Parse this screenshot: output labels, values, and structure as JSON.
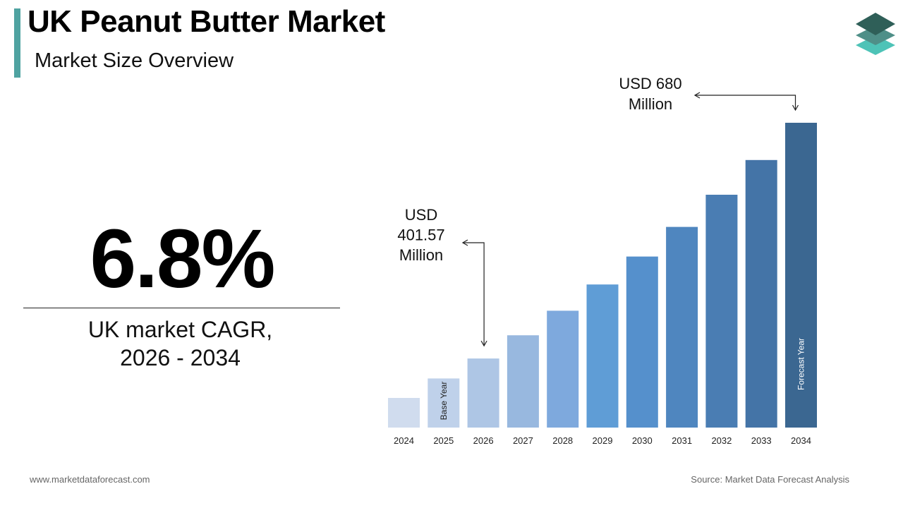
{
  "header": {
    "title": "UK Peanut Butter Market",
    "subtitle": "Market Size Overview"
  },
  "cagr": {
    "value": "6.8%",
    "label_line1": "UK market CAGR,",
    "label_line2": "2026 - 2034"
  },
  "footer": {
    "website": "www.marketdataforecast.com",
    "source": "Source: Market Data Forecast Analysis"
  },
  "colors": {
    "accent": "#4fa3a1",
    "logo_top": "#2f5f58",
    "logo_mid": "#4f8f88",
    "logo_bottom": "#4ec3b7"
  },
  "chart_data": {
    "type": "bar",
    "categories": [
      "2024",
      "2025",
      "2026",
      "2027",
      "2028",
      "2029",
      "2030",
      "2031",
      "2032",
      "2033",
      "2034"
    ],
    "values": [
      355,
      378,
      401.57,
      429,
      458,
      489,
      522,
      557,
      595,
      636,
      680
    ],
    "bar_colors": [
      "#d0dcee",
      "#bfd1ea",
      "#aec6e5",
      "#98b8df",
      "#7ea9dd",
      "#5f9dd6",
      "#5590cc",
      "#4f86bf",
      "#4a7db3",
      "#4474a7",
      "#3b6791"
    ],
    "ylim": [
      320,
      700
    ],
    "bar_labels": [
      {
        "index": 1,
        "text": "Base Year",
        "color": "#222222"
      },
      {
        "index": 10,
        "text": "Forecast Year",
        "color": "#ffffff"
      }
    ],
    "callouts": [
      {
        "index": 2,
        "line1": "USD",
        "line2": "401.57",
        "line3": "Million"
      },
      {
        "index": 10,
        "line1": "USD 680",
        "line2": "Million"
      }
    ]
  }
}
